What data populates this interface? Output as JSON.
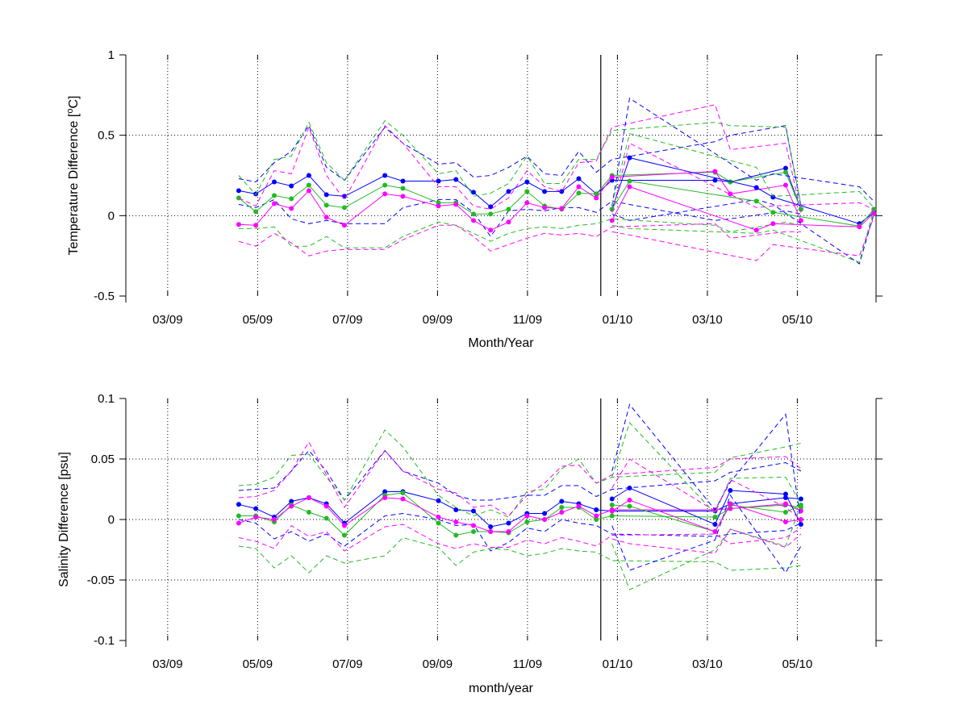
{
  "chart_data": [
    {
      "type": "line",
      "xlabel": "Month/Year",
      "ylabel": "Temperature Difference [°C]",
      "ylabel_parts": [
        "Temperature Difference [",
        "o",
        "C]"
      ],
      "ylim": [
        -0.5,
        1
      ],
      "yticks": [
        "-0.5",
        "0",
        "0.5",
        "1"
      ],
      "xticks": [
        "03/09",
        "05/09",
        "07/09",
        "09/09",
        "11/09",
        "01/10",
        "03/10",
        "05/10"
      ],
      "grid": true,
      "vline_x": 10.63,
      "x": [
        2.58,
        2.96,
        3.37,
        3.75,
        4.14,
        4.53,
        4.93,
        5.83,
        6.23,
        7.02,
        7.41,
        7.8,
        8.18,
        8.58,
        8.99,
        9.38,
        9.76,
        10.14,
        10.53,
        10.88,
        13.17,
        13.51,
        14.74,
        15.08
      ],
      "series": [
        {
          "color": "#0000ff",
          "marker": true,
          "mean": [
            0.155,
            0.135,
            0.21,
            0.185,
            0.25,
            0.13,
            0.12,
            0.25,
            0.215,
            0.215,
            0.225,
            0.145,
            0.055,
            0.15,
            0.21,
            0.15,
            0.15,
            0.23,
            0.135,
            0.22,
            0.22,
            0.21,
            0.295,
            0.04
          ],
          "upper": [
            0.23,
            0.21,
            0.33,
            0.4,
            0.56,
            0.3,
            0.22,
            0.55,
            0.45,
            0.32,
            0.33,
            0.24,
            0.25,
            0.3,
            0.37,
            0.26,
            0.25,
            0.4,
            0.27,
            0.35,
            0.46,
            0.5,
            0.56,
            0.06
          ],
          "lower": [
            0.07,
            0.05,
            0.1,
            -0.02,
            -0.05,
            -0.03,
            -0.05,
            -0.05,
            0.05,
            0.1,
            0.1,
            0.02,
            -0.13,
            0.03,
            0.04,
            0.03,
            0.05,
            0.05,
            0.02,
            0.09,
            -0.03,
            -0.02,
            0.03,
            0.01
          ]
        },
        {
          "color": "#22bb22",
          "marker": true,
          "mean": [
            0.11,
            0.025,
            0.125,
            0.105,
            0.19,
            0.065,
            0.05,
            0.19,
            0.17,
            0.08,
            0.08,
            0.01,
            0.01,
            0.04,
            0.15,
            0.06,
            0.04,
            0.14,
            0.135,
            0.25,
            0.27,
            0.21,
            0.27,
            0.04
          ],
          "upper": [
            0.25,
            0.13,
            0.35,
            0.37,
            0.58,
            0.33,
            0.22,
            0.59,
            0.5,
            0.26,
            0.28,
            0.12,
            0.14,
            0.2,
            0.37,
            0.2,
            0.2,
            0.35,
            0.35,
            0.53,
            0.58,
            0.56,
            0.55,
            0.07
          ],
          "lower": [
            -0.08,
            -0.08,
            -0.07,
            -0.19,
            -0.19,
            -0.13,
            -0.2,
            -0.2,
            -0.13,
            -0.04,
            -0.06,
            -0.11,
            -0.16,
            -0.11,
            -0.08,
            -0.07,
            -0.08,
            -0.06,
            -0.05,
            -0.02,
            -0.06,
            -0.1,
            -0.04,
            -0.06
          ]
        },
        {
          "color": "#ff00ff",
          "marker": true,
          "mean": [
            -0.055,
            -0.06,
            0.075,
            0.045,
            0.155,
            -0.01,
            -0.06,
            0.135,
            0.12,
            0.06,
            0.07,
            -0.03,
            -0.09,
            -0.04,
            0.08,
            0.05,
            0.045,
            0.18,
            0.11,
            0.24,
            0.275,
            0.135,
            0.19,
            -0.03
          ],
          "upper": [
            0.11,
            0.06,
            0.28,
            0.26,
            0.55,
            0.25,
            0.1,
            0.56,
            0.45,
            0.18,
            0.18,
            0.06,
            0.04,
            0.11,
            0.28,
            0.18,
            0.15,
            0.33,
            0.34,
            0.55,
            0.69,
            0.41,
            0.45,
            0.02
          ],
          "lower": [
            -0.16,
            -0.19,
            -0.11,
            -0.17,
            -0.25,
            -0.22,
            -0.21,
            -0.21,
            -0.15,
            -0.06,
            -0.06,
            -0.13,
            -0.22,
            -0.18,
            -0.14,
            -0.11,
            -0.12,
            -0.11,
            -0.13,
            -0.07,
            -0.05,
            -0.14,
            -0.1,
            -0.1
          ]
        }
      ],
      "ext_x": [
        10.88,
        11.27,
        14.09,
        14.46,
        16.38,
        16.7
      ],
      "ext_series": [
        {
          "color": "#0000ff",
          "mean": [
            0.04,
            0.36,
            0.175,
            0.115,
            -0.05,
            0.02
          ],
          "upper": [
            0.06,
            0.73,
            0.22,
            0.26,
            0.18,
            0.09
          ],
          "lower": [
            0.01,
            -0.03,
            0.1,
            0.07,
            -0.3,
            0.01
          ]
        },
        {
          "color": "#22bb22",
          "mean": [
            0.04,
            0.215,
            0.09,
            0.02,
            -0.065,
            0.04
          ],
          "upper": [
            0.07,
            0.51,
            0.3,
            0.12,
            0.15,
            0.05
          ],
          "lower": [
            -0.06,
            -0.08,
            -0.11,
            -0.09,
            -0.29,
            0.04
          ]
        },
        {
          "color": "#ff00ff",
          "mean": [
            -0.03,
            0.18,
            -0.09,
            -0.05,
            -0.07,
            0.015
          ],
          "upper": [
            0.02,
            0.45,
            0.05,
            0.06,
            0.08,
            0.04
          ],
          "lower": [
            -0.1,
            -0.12,
            -0.28,
            -0.18,
            -0.25,
            -0.01
          ]
        }
      ]
    },
    {
      "type": "line",
      "xlabel": "month/year",
      "ylabel": "Salinity Difference [psu]",
      "ylim": [
        -0.1,
        0.1
      ],
      "yticks": [
        "-0.1",
        "-0.05",
        "0",
        "0.05",
        "0.1"
      ],
      "xticks": [
        "03/09",
        "05/09",
        "07/09",
        "09/09",
        "11/09",
        "01/10",
        "03/10",
        "05/10"
      ],
      "grid": true,
      "vline_x": 10.63,
      "x": [
        2.58,
        2.96,
        3.37,
        3.75,
        4.14,
        4.53,
        4.93,
        5.83,
        6.23,
        7.02,
        7.41,
        7.8,
        8.18,
        8.58,
        8.99,
        9.38,
        9.76,
        10.14,
        10.53,
        10.88,
        13.17,
        13.51,
        14.74,
        15.08
      ],
      "series": [
        {
          "color": "#0000ff",
          "marker": true,
          "mean": [
            0.0125,
            0.009,
            0.002,
            0.015,
            0.018,
            0.013,
            -0.003,
            0.023,
            0.023,
            0.0155,
            0.008,
            0.007,
            -0.006,
            -0.003,
            0.005,
            0.005,
            0.015,
            0.013,
            0.008,
            0.007,
            0.007,
            0.013,
            0.018,
            0.017
          ],
          "upper": [
            0.024,
            0.025,
            0.026,
            0.04,
            0.057,
            0.04,
            0.016,
            0.057,
            0.04,
            0.03,
            0.02,
            0.016,
            0.016,
            0.018,
            0.02,
            0.02,
            0.028,
            0.028,
            0.019,
            0.025,
            0.032,
            0.039,
            0.047,
            0.04
          ],
          "lower": [
            0.0,
            -0.003,
            -0.016,
            -0.01,
            -0.018,
            -0.012,
            -0.022,
            0.003,
            0.005,
            0.0,
            -0.005,
            -0.004,
            -0.026,
            -0.019,
            -0.007,
            -0.01,
            0.0,
            -0.003,
            -0.005,
            -0.012,
            -0.014,
            -0.012,
            -0.009,
            -0.003
          ]
        },
        {
          "color": "#22bb22",
          "marker": true,
          "mean": [
            0.003,
            0.003,
            -0.002,
            0.012,
            0.006,
            0.001,
            -0.013,
            0.02,
            0.022,
            -0.003,
            -0.013,
            -0.01,
            -0.01,
            -0.011,
            -0.002,
            0.0,
            0.01,
            0.01,
            0.0,
            0.003,
            0.002,
            0.009,
            0.012,
            0.01
          ],
          "upper": [
            0.028,
            0.029,
            0.035,
            0.053,
            0.054,
            0.035,
            0.016,
            0.074,
            0.06,
            0.02,
            0.01,
            0.003,
            0.008,
            0.002,
            0.023,
            0.025,
            0.042,
            0.05,
            0.03,
            0.035,
            0.039,
            0.051,
            0.06,
            0.063
          ],
          "lower": [
            -0.022,
            -0.024,
            -0.04,
            -0.03,
            -0.044,
            -0.03,
            -0.036,
            -0.03,
            -0.015,
            -0.023,
            -0.038,
            -0.027,
            -0.024,
            -0.025,
            -0.03,
            -0.028,
            -0.024,
            -0.026,
            -0.027,
            -0.034,
            -0.035,
            -0.042,
            -0.04,
            -0.038
          ]
        },
        {
          "color": "#ff00ff",
          "marker": true,
          "mean": [
            -0.003,
            0.002,
            0.0,
            0.011,
            0.018,
            0.011,
            -0.005,
            0.018,
            0.017,
            0.002,
            -0.002,
            -0.005,
            -0.01,
            -0.01,
            0.003,
            0.0,
            0.006,
            0.011,
            0.003,
            0.008,
            0.008,
            0.009,
            0.013,
            0.007
          ],
          "upper": [
            0.018,
            0.019,
            0.024,
            0.04,
            0.064,
            0.037,
            0.01,
            0.057,
            0.04,
            0.025,
            0.022,
            0.01,
            0.012,
            0.003,
            0.02,
            0.03,
            0.044,
            0.045,
            0.03,
            0.037,
            0.043,
            0.05,
            0.052,
            0.042
          ],
          "lower": [
            -0.015,
            -0.018,
            -0.024,
            -0.005,
            -0.014,
            -0.01,
            -0.026,
            -0.006,
            -0.004,
            -0.02,
            -0.024,
            -0.02,
            -0.023,
            -0.023,
            -0.017,
            -0.02,
            -0.015,
            -0.018,
            -0.022,
            -0.013,
            -0.012,
            -0.02,
            -0.015,
            -0.007
          ]
        }
      ],
      "ext_x": [
        10.88,
        11.27,
        13.17,
        13.51,
        14.74,
        15.08
      ],
      "ext_series": [
        {
          "color": "#0000ff",
          "mean": [
            0.017,
            0.026,
            -0.004,
            0.024,
            0.021,
            -0.004
          ],
          "upper": [
            0.04,
            0.095,
            0.008,
            0.031,
            0.087,
            -0.003
          ],
          "lower": [
            -0.005,
            -0.042,
            -0.017,
            0.02,
            -0.044,
            -0.022
          ]
        },
        {
          "color": "#22bb22",
          "mean": [
            0.012,
            0.011,
            -0.01,
            0.012,
            0.006,
            0.012
          ],
          "upper": [
            0.035,
            0.08,
            0.005,
            0.034,
            0.035,
            0.013
          ],
          "lower": [
            -0.02,
            -0.058,
            -0.025,
            -0.008,
            -0.022,
            0.012
          ]
        },
        {
          "color": "#ff00ff",
          "mean": [
            0.007,
            0.016,
            -0.01,
            0.013,
            -0.002,
            0.0
          ],
          "upper": [
            0.026,
            0.05,
            0.007,
            0.033,
            0.01,
            0.0
          ],
          "lower": [
            -0.016,
            -0.02,
            -0.028,
            -0.008,
            -0.023,
            -0.012
          ]
        }
      ]
    }
  ]
}
